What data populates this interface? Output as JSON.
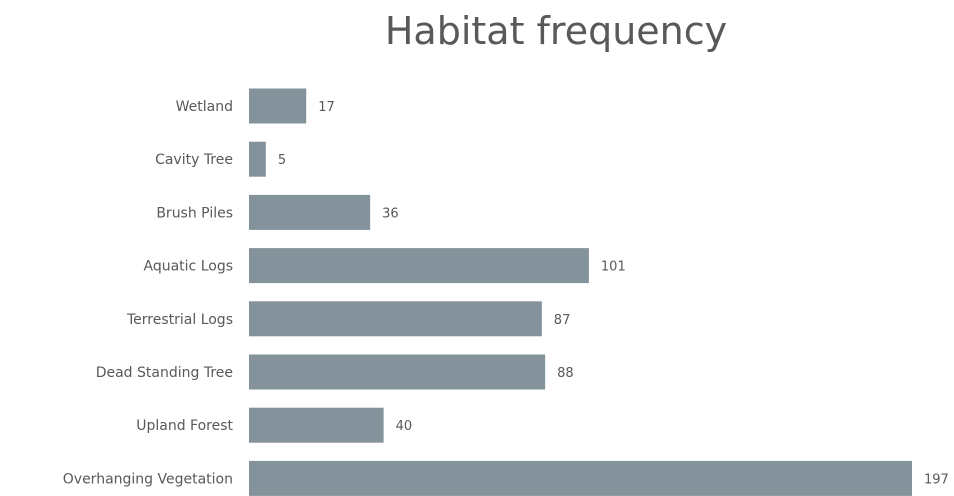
{
  "chart_data": {
    "type": "bar",
    "orientation": "horizontal",
    "title": "Habitat frequency",
    "xlabel": "",
    "ylabel": "",
    "categories": [
      "Wetland",
      "Cavity Tree",
      "Brush Piles",
      "Aquatic Logs",
      "Terrestrial Logs",
      "Dead Standing Tree",
      "Upland Forest",
      "Overhanging Vegetation"
    ],
    "values": [
      17,
      5,
      36,
      101,
      87,
      88,
      40,
      197
    ],
    "data_labels": [
      "17",
      "5",
      "36",
      "101",
      "87",
      "88",
      "40",
      "197"
    ],
    "xlim": [
      0,
      197
    ],
    "grid": false,
    "legend": "none",
    "bar_color": "#84939b",
    "text_color": "#595959"
  }
}
